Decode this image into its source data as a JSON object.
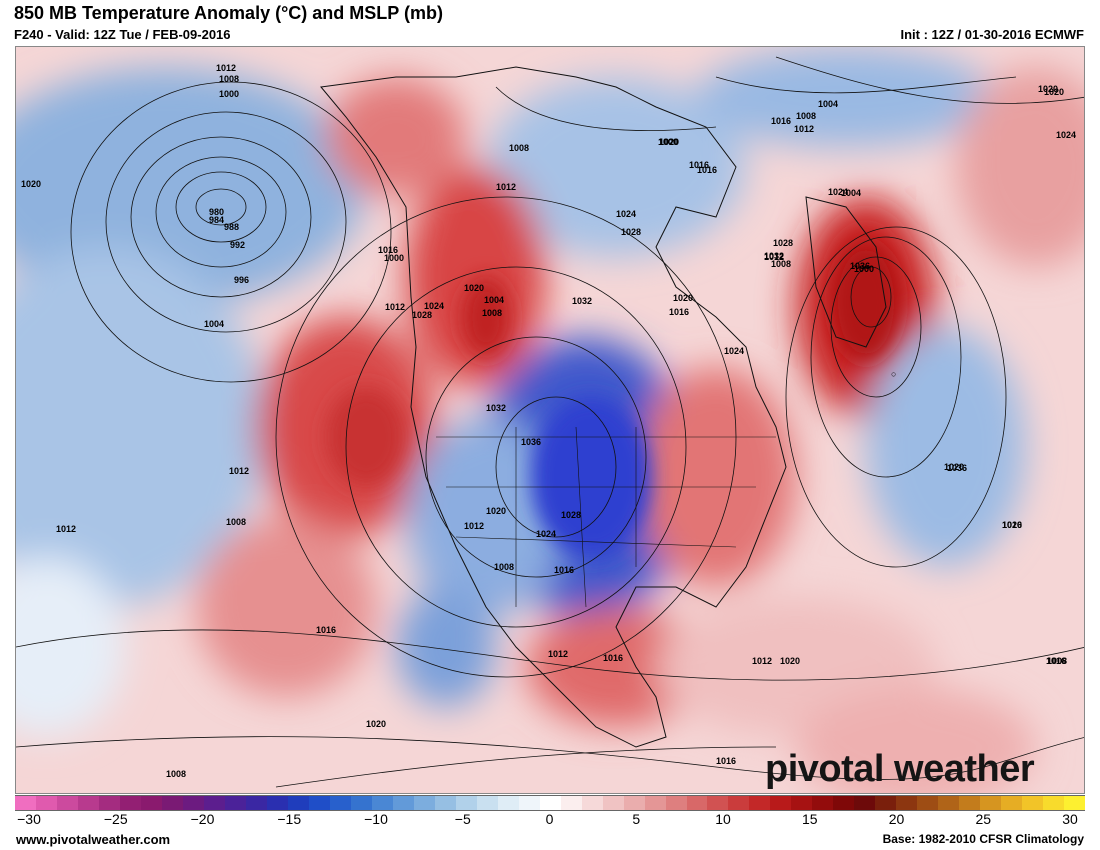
{
  "header": {
    "title": "850 MB Temperature Anomaly (°C) and MSLP (mb)",
    "valid": "F240 - Valid: 12Z Tue / FEB-09-2016",
    "init": "Init : 12Z / 01-30-2016 ECMWF"
  },
  "map": {
    "region": "North America",
    "anomaly_features": [
      {
        "name": "cold-anomaly-central-us",
        "sign": "negative",
        "color": "#2f3fd0"
      },
      {
        "name": "cold-anomaly-north-pacific",
        "sign": "negative",
        "color": "#7fa3d8"
      },
      {
        "name": "warm-anomaly-greenland-atlantic",
        "sign": "positive",
        "color": "#c81818"
      },
      {
        "name": "warm-anomaly-western-canada",
        "sign": "positive",
        "color": "#d02a2a"
      },
      {
        "name": "warm-anomaly-northeast-pacific",
        "sign": "positive",
        "color": "#d84040"
      },
      {
        "name": "warm-anomaly-southern-us-mexico",
        "sign": "positive",
        "color": "#e46a6a"
      }
    ],
    "isobar_labels": [
      "1012",
      "1008",
      "1000",
      "1020",
      "980",
      "984",
      "988",
      "992",
      "996",
      "1004",
      "1000",
      "1008",
      "1012",
      "1016",
      "1020",
      "1004",
      "1008",
      "1012",
      "1024",
      "1028",
      "1032",
      "1028",
      "1024",
      "1020",
      "1016",
      "1000",
      "1004",
      "1008",
      "1012",
      "1016",
      "1020",
      "1024",
      "1028",
      "1032",
      "1036",
      "1020",
      "1016",
      "1024",
      "1036",
      "1028",
      "1024",
      "1032",
      "1020",
      "1012",
      "1008",
      "1016",
      "1024",
      "1020",
      "1016",
      "1012",
      "1008",
      "1012",
      "1016",
      "1020",
      "1008",
      "1012",
      "1016",
      "1016",
      "1012",
      "1008",
      "1000",
      "1004",
      "1008",
      "1012",
      "1016",
      "1020",
      "1036",
      "1020",
      "1020",
      "1016"
    ],
    "brand": "pivotal weather"
  },
  "colorbar": {
    "ticks": [
      "−30",
      "−25",
      "−20",
      "−15",
      "−10",
      "−5",
      "0",
      "5",
      "10",
      "15",
      "20",
      "25",
      "30"
    ],
    "colors": [
      "#f06ec0",
      "#e05aae",
      "#cc4a9e",
      "#b83a8e",
      "#a42c80",
      "#931f73",
      "#8a1a6e",
      "#7a1a74",
      "#6c1b80",
      "#5c1e8e",
      "#4b2299",
      "#3a27a3",
      "#2a2fb0",
      "#1f3dbc",
      "#1f4ec8",
      "#2860cc",
      "#3573cf",
      "#4a87d4",
      "#629ad9",
      "#7cadde",
      "#96bfe3",
      "#b1d1ea",
      "#c9e0f0",
      "#dfedf6",
      "#eff5fa",
      "#ffffff",
      "#fbeeee",
      "#f6d9d9",
      "#f0c3c3",
      "#eaadad",
      "#e49696",
      "#de7f7f",
      "#d86868",
      "#d15252",
      "#ca3c3c",
      "#c32828",
      "#b81a1a",
      "#a61212",
      "#930c0c",
      "#7f0808",
      "#6d0a0a",
      "#7a1f0c",
      "#8c3610",
      "#9e4d14",
      "#b06418",
      "#c37c1c",
      "#d69520",
      "#e6ad24",
      "#f2c428",
      "#f8db2c",
      "#fdf030"
    ]
  },
  "footer": {
    "url": "www.pivotalweather.com",
    "base": "Base: 1982-2010 CFSR Climatology"
  }
}
